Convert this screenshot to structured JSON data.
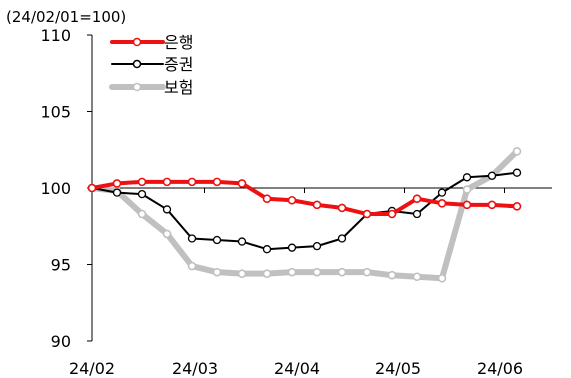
{
  "chart_data": {
    "type": "line",
    "unit_label": "(24/02/01=100)",
    "xlabel": "",
    "ylabel": "",
    "ylim": [
      90,
      110
    ],
    "yticks": [
      90,
      95,
      100,
      105,
      110
    ],
    "x_tick_labels": [
      "24/02",
      "24/03",
      "24/04",
      "24/05",
      "24/06"
    ],
    "x_index_range": [
      0,
      17
    ],
    "x_tick_indices": [
      0,
      4.5,
      8.5,
      12.5,
      16.5
    ],
    "baseline": 100,
    "grid": false,
    "legend_position": "top-left",
    "series": [
      {
        "name": "은행",
        "color": "#ee1111",
        "line_width": 4,
        "markers": true,
        "values": [
          100.0,
          100.3,
          100.4,
          100.4,
          100.4,
          100.4,
          100.3,
          99.3,
          99.2,
          98.9,
          98.7,
          98.3,
          98.3,
          99.3,
          99.0,
          98.9,
          98.9,
          98.8
        ]
      },
      {
        "name": "증권",
        "color": "#000000",
        "line_width": 2,
        "markers": true,
        "values": [
          100.0,
          99.7,
          99.6,
          98.6,
          96.7,
          96.6,
          96.5,
          96.0,
          96.1,
          96.2,
          96.7,
          98.3,
          98.5,
          98.3,
          99.7,
          100.7,
          100.8,
          101.0
        ]
      },
      {
        "name": "보험",
        "color": "#c0c0c0",
        "line_width": 6,
        "markers": true,
        "values": [
          100.0,
          99.8,
          98.3,
          97.0,
          94.9,
          94.5,
          94.4,
          94.4,
          94.5,
          94.5,
          94.5,
          94.5,
          94.3,
          94.2,
          94.1,
          99.9,
          100.8,
          102.4
        ]
      }
    ]
  }
}
